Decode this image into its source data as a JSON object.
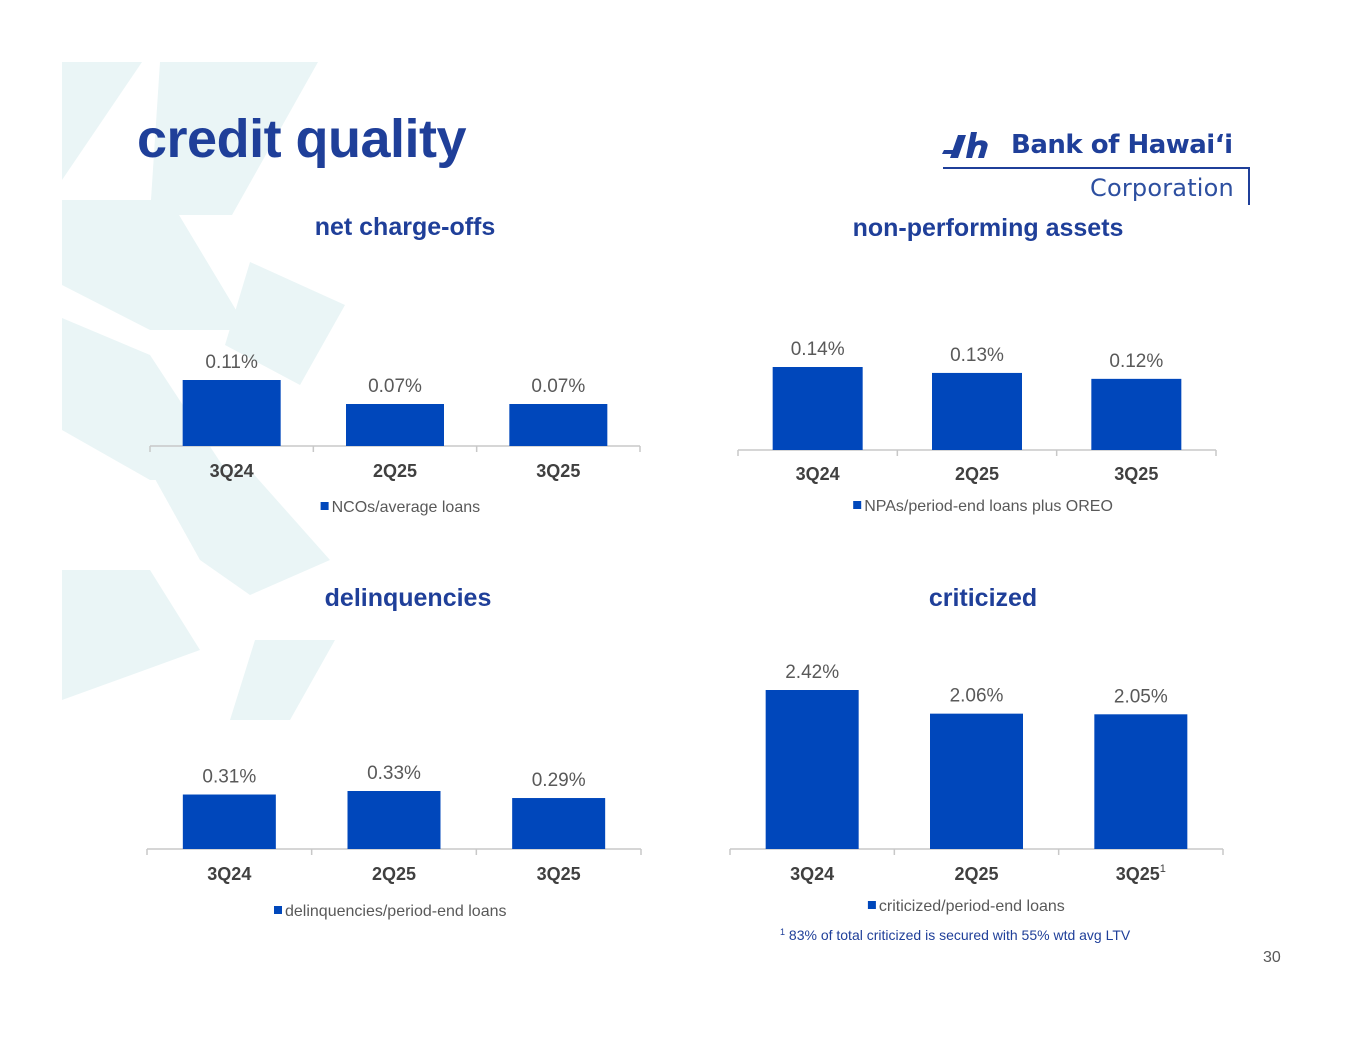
{
  "page": {
    "title": "credit quality",
    "page_number": "30",
    "footnote_marker": "1",
    "footnote": "83% of total criticized is secured with 55% wtd avg LTV"
  },
  "logo": {
    "name": "Bank of Hawaiʻi",
    "sub": "Corporation"
  },
  "colors": {
    "bar": "#0047bb",
    "title": "#1f3f99",
    "axis": "#c8c8c8",
    "watermark": "#eaf5f6"
  },
  "chart_data": [
    {
      "type": "bar",
      "title": "net charge-offs",
      "categories": [
        "3Q24",
        "2Q25",
        "3Q25"
      ],
      "series": [
        {
          "name": "NCOs/average loans",
          "values": [
            0.11,
            0.07,
            0.07
          ]
        }
      ],
      "data_labels": [
        "0.11%",
        "0.07%",
        "0.07%"
      ],
      "legend": "bottom",
      "grid": false
    },
    {
      "type": "bar",
      "title": "non-performing assets",
      "categories": [
        "3Q24",
        "2Q25",
        "3Q25"
      ],
      "series": [
        {
          "name": "NPAs/period-end loans plus OREO",
          "values": [
            0.14,
            0.13,
            0.12
          ]
        }
      ],
      "data_labels": [
        "0.14%",
        "0.13%",
        "0.12%"
      ],
      "legend": "bottom",
      "grid": false
    },
    {
      "type": "bar",
      "title": "delinquencies",
      "categories": [
        "3Q24",
        "2Q25",
        "3Q25"
      ],
      "series": [
        {
          "name": "delinquencies/period-end loans",
          "values": [
            0.31,
            0.33,
            0.29
          ]
        }
      ],
      "data_labels": [
        "0.31%",
        "0.33%",
        "0.29%"
      ],
      "legend": "bottom",
      "grid": false
    },
    {
      "type": "bar",
      "title": "criticized",
      "categories": [
        "3Q24",
        "2Q25",
        "3Q25"
      ],
      "category_notes": [
        "",
        "",
        "1"
      ],
      "series": [
        {
          "name": "criticized/period-end loans",
          "values": [
            2.42,
            2.06,
            2.05
          ]
        }
      ],
      "data_labels": [
        "2.42%",
        "2.06%",
        "2.05%"
      ],
      "legend": "bottom",
      "grid": false
    }
  ]
}
